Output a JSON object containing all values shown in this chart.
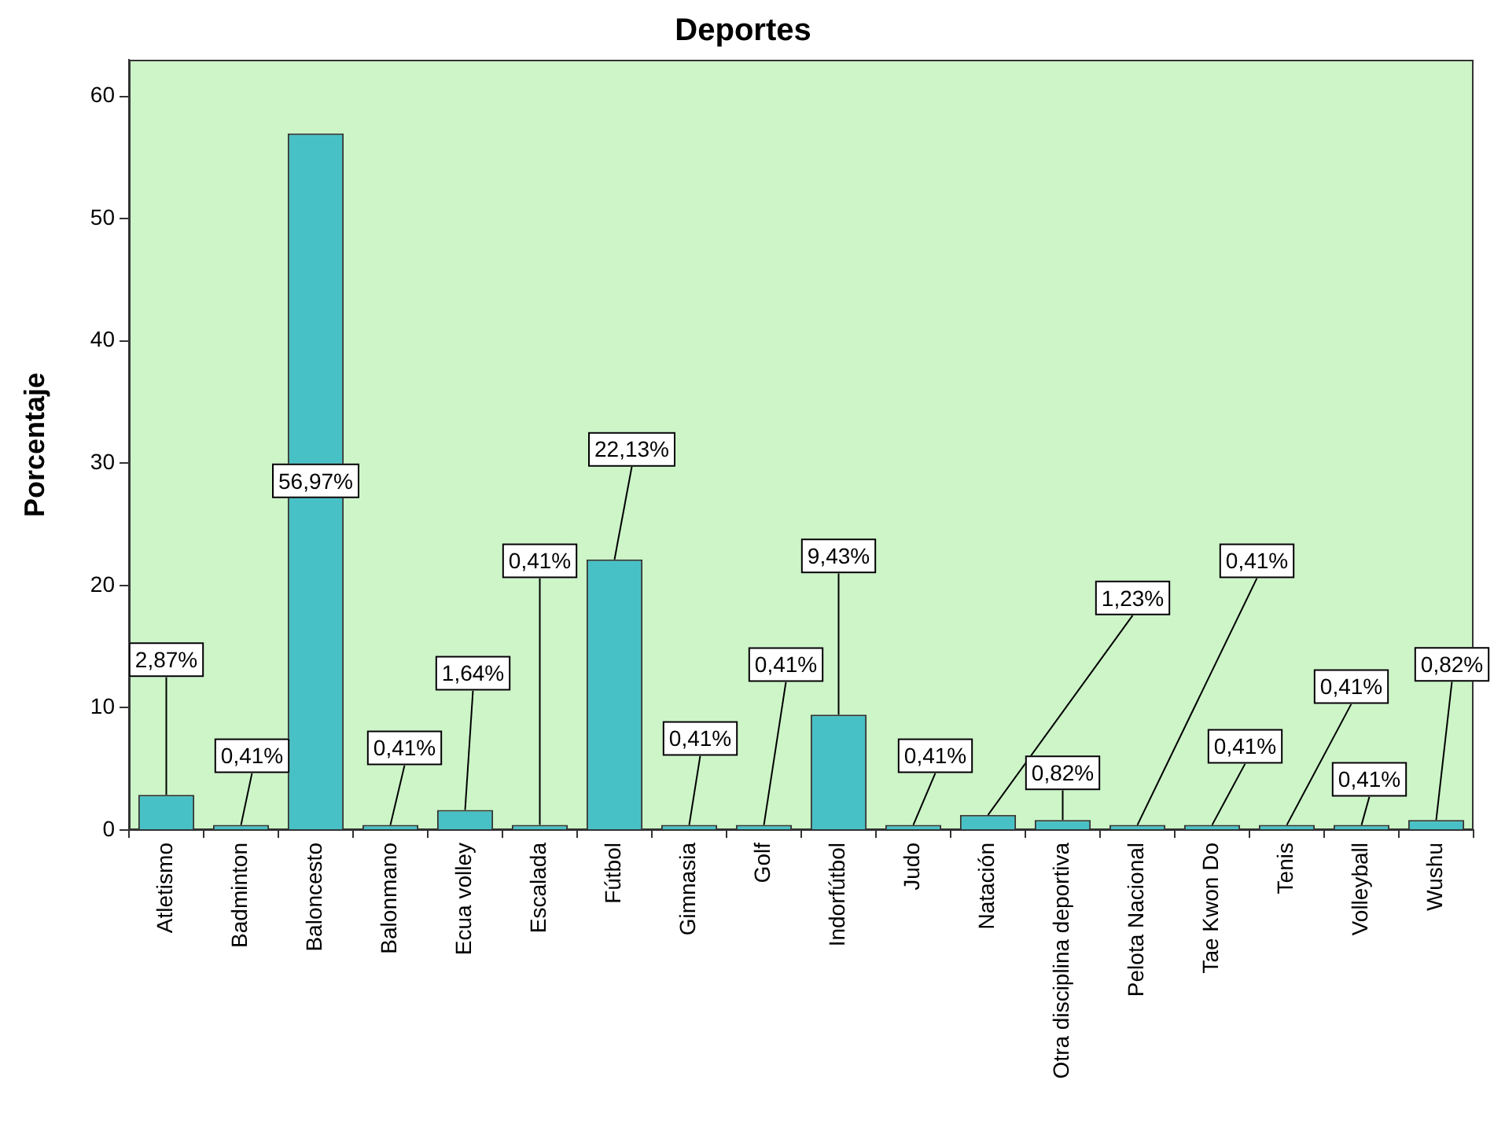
{
  "chart_data": {
    "type": "bar",
    "title": "Deportes",
    "ylabel": "Porcentaje",
    "categories": [
      "Atletismo",
      "Badminton",
      "Baloncesto",
      "Balonmano",
      "Ecua volley",
      "Escalada",
      "Fútbol",
      "Gimnasia",
      "Golf",
      "Indorfútbol",
      "Judo",
      "Natación",
      "Otra disciplina deportiva",
      "Pelota Nacional",
      "Tae Kwon Do",
      "Tenis",
      "Volleyball",
      "Wushu"
    ],
    "values": [
      2.87,
      0.41,
      56.97,
      0.41,
      1.64,
      0.41,
      22.13,
      0.41,
      0.41,
      9.43,
      0.41,
      1.23,
      0.82,
      0.41,
      0.41,
      0.41,
      0.41,
      0.82
    ],
    "value_labels": [
      "2,87%",
      "0,41%",
      "56,97%",
      "0,41%",
      "1,64%",
      "0,41%",
      "22,13%",
      "0,41%",
      "0,41%",
      "9,43%",
      "0,41%",
      "1,23%",
      "0,82%",
      "0,41%",
      "0,41%",
      "0,41%",
      "0,41%",
      "0,82%"
    ],
    "color": "#48c1c6",
    "ylim": [
      0,
      63
    ],
    "yticks": [
      0,
      10,
      20,
      30,
      40,
      50,
      60
    ]
  }
}
